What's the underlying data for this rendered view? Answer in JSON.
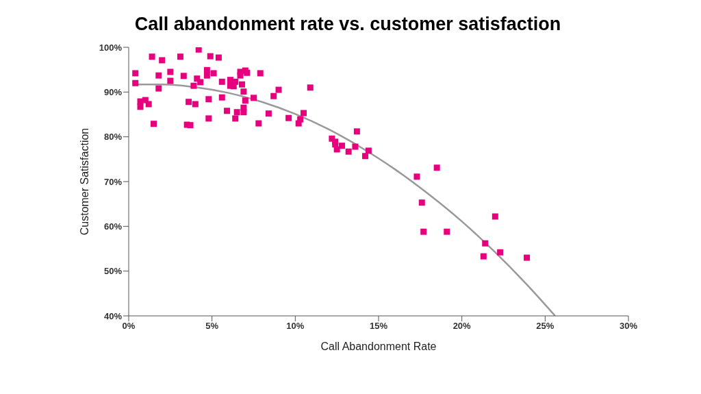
{
  "chart_data": {
    "type": "scatter",
    "title": "Call abandonment rate vs. customer satisfaction",
    "xlabel": "Call Abandonment Rate",
    "ylabel": "Customer Satisfaction",
    "xlim": [
      0,
      30
    ],
    "xticks": [
      {
        "value": 0,
        "label": "0%"
      },
      {
        "value": 5,
        "label": "5%"
      },
      {
        "value": 10,
        "label": "10%"
      },
      {
        "value": 15,
        "label": "15%"
      },
      {
        "value": 20,
        "label": "20%"
      },
      {
        "value": 25,
        "label": "25%"
      },
      {
        "value": 30,
        "label": "30%"
      }
    ],
    "ylim": [
      40,
      100
    ],
    "yticks": [
      {
        "value": 40,
        "label": "40%"
      },
      {
        "value": 50,
        "label": "50%"
      },
      {
        "value": 60,
        "label": "60%"
      },
      {
        "value": 70,
        "label": "70%"
      },
      {
        "value": 80,
        "label": "80%"
      },
      {
        "value": 90,
        "label": "90%"
      },
      {
        "value": 100,
        "label": "100%"
      }
    ],
    "series": [
      {
        "marker": "square",
        "color": "#e6007e",
        "x": [
          0.4,
          0.4,
          1.4,
          2.0,
          3.1,
          4.2,
          4.9,
          5.4,
          2.5,
          1.8,
          3.3,
          2.5,
          4.7,
          4.7,
          5.1,
          4.1,
          4.3,
          3.9,
          1.8,
          5.6,
          6.1,
          6.4,
          6.8,
          6.1,
          6.3,
          6.7,
          7.0,
          7.1,
          6.7,
          7.9,
          6.9,
          7.5,
          7.0,
          8.7,
          9.0,
          10.9,
          5.6,
          4.8,
          3.6,
          4.0,
          0.7,
          1.0,
          1.2,
          0.7,
          5.9,
          6.5,
          6.9,
          6.9,
          8.4,
          6.4,
          4.8,
          7.8,
          9.6,
          10.5,
          10.3,
          10.2,
          1.5,
          3.5,
          3.7,
          13.7,
          12.2,
          12.4,
          12.4,
          12.8,
          12.5,
          13.2,
          13.6,
          14.4,
          14.2,
          18.5,
          17.3,
          17.6,
          17.7,
          19.1,
          22.0,
          21.4,
          22.3,
          21.3,
          23.9
        ],
        "values": [
          94.2,
          92.0,
          97.9,
          97.1,
          97.9,
          99.5,
          98.0,
          97.7,
          94.5,
          93.7,
          93.6,
          92.5,
          94.9,
          93.7,
          94.2,
          93.0,
          92.2,
          91.4,
          90.8,
          92.3,
          92.7,
          92.3,
          91.7,
          91.4,
          91.3,
          94.5,
          94.8,
          94.3,
          93.7,
          94.2,
          90.1,
          88.7,
          88.1,
          89.1,
          90.5,
          91.0,
          88.8,
          88.4,
          87.8,
          87.3,
          87.9,
          88.2,
          87.3,
          86.7,
          85.8,
          85.5,
          86.5,
          85.5,
          85.2,
          84.1,
          84.1,
          83.0,
          84.2,
          85.3,
          83.9,
          83.0,
          82.9,
          82.7,
          82.6,
          81.2,
          79.6,
          78.9,
          78.3,
          78.0,
          77.2,
          76.7,
          77.8,
          76.9,
          75.7,
          73.1,
          71.1,
          65.3,
          58.8,
          58.8,
          62.2,
          56.2,
          54.2,
          53.3,
          53.0
        ]
      },
      {
        "type": "line",
        "color": "#999999",
        "x": [
          0.4,
          2,
          4,
          6,
          8,
          10,
          12,
          14,
          16,
          18,
          20,
          22,
          24,
          25.6
        ],
        "values": [
          91.7,
          91.7,
          91.1,
          89.8,
          87.8,
          85.1,
          81.7,
          77.5,
          72.7,
          67.2,
          61.1,
          54.2,
          46.6,
          40.0
        ]
      }
    ]
  }
}
